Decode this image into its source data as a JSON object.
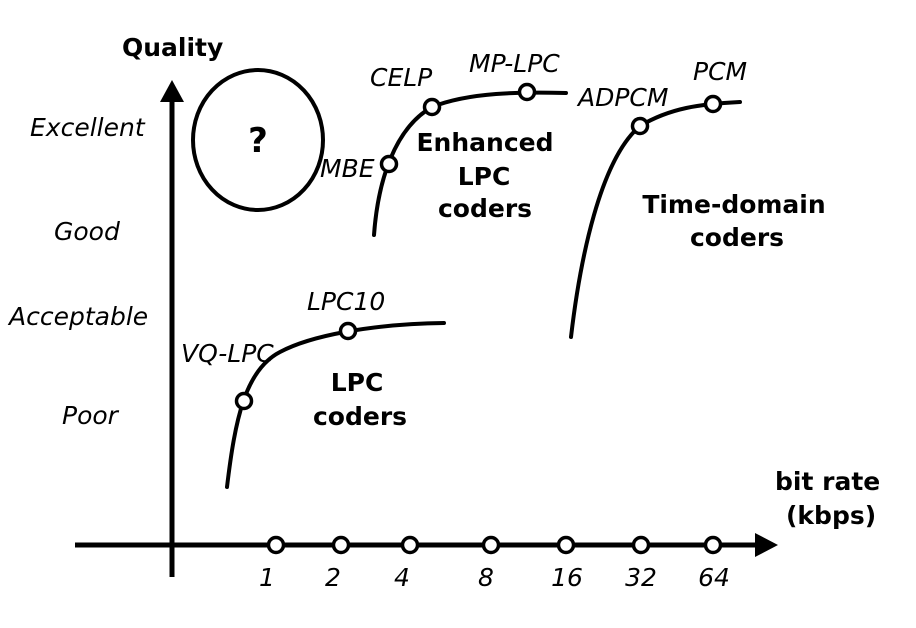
{
  "axes": {
    "y_title": "Quality",
    "x_title_line1": "bit rate",
    "x_title_line2": "(kbps)"
  },
  "quality_levels": [
    "Excellent",
    "Good",
    "Acceptable",
    "Poor"
  ],
  "bit_rate_ticks": [
    "1",
    "2",
    "4",
    "8",
    "16",
    "32",
    "64"
  ],
  "unknown_region": {
    "symbol": "?"
  },
  "lpc_coders": {
    "group_line1": "LPC",
    "group_line2": "coders",
    "points": [
      "VQ-LPC",
      "LPC10"
    ]
  },
  "enhanced_lpc_coders": {
    "group_line1": "Enhanced",
    "group_line2": "LPC",
    "group_line3": "coders",
    "points": [
      "MBE",
      "CELP",
      "MP-LPC"
    ]
  },
  "time_domain_coders": {
    "group_line1": "Time-domain",
    "group_line2": "coders",
    "points": [
      "ADPCM",
      "PCM"
    ]
  }
}
